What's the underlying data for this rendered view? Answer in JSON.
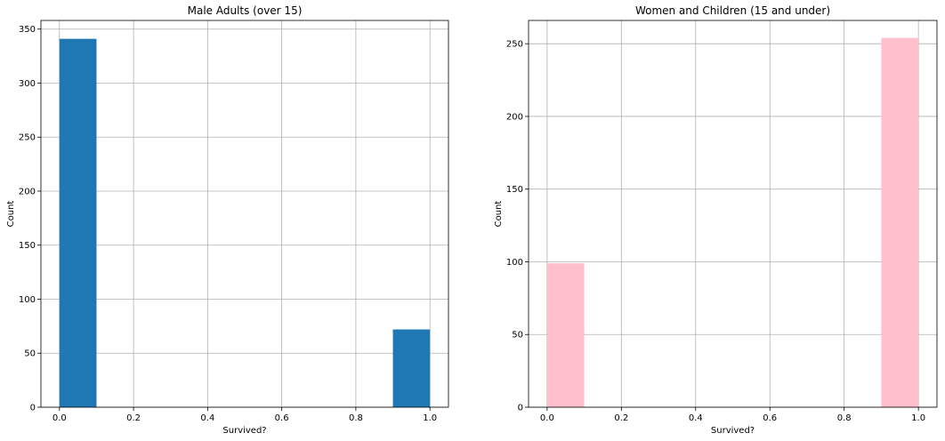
{
  "chart_data": [
    {
      "type": "bar",
      "title": "Male Adults (over 15)",
      "xlabel": "Survived?",
      "ylabel": "Count",
      "xlim": [
        -0.05,
        1.05
      ],
      "ylim": [
        0,
        358
      ],
      "xticks": [
        "0.0",
        "0.2",
        "0.4",
        "0.6",
        "0.8",
        "1.0"
      ],
      "yticks": [
        "0",
        "50",
        "100",
        "150",
        "200",
        "250",
        "300",
        "350"
      ],
      "grid": true,
      "color": "#1f77b4",
      "bins": [
        {
          "x0": 0.0,
          "x1": 0.1,
          "value": 341
        },
        {
          "x0": 0.9,
          "x1": 1.0,
          "value": 72
        }
      ]
    },
    {
      "type": "bar",
      "title": "Women and Children (15 and under)",
      "xlabel": "Survived?",
      "ylabel": "Count",
      "xlim": [
        -0.05,
        1.05
      ],
      "ylim": [
        0,
        266
      ],
      "xticks": [
        "0.0",
        "0.2",
        "0.4",
        "0.6",
        "0.8",
        "1.0"
      ],
      "yticks": [
        "0",
        "50",
        "100",
        "150",
        "200",
        "250"
      ],
      "grid": true,
      "color": "#ffc0cb",
      "bins": [
        {
          "x0": 0.0,
          "x1": 0.1,
          "value": 99
        },
        {
          "x0": 0.9,
          "x1": 1.0,
          "value": 254
        }
      ]
    }
  ]
}
